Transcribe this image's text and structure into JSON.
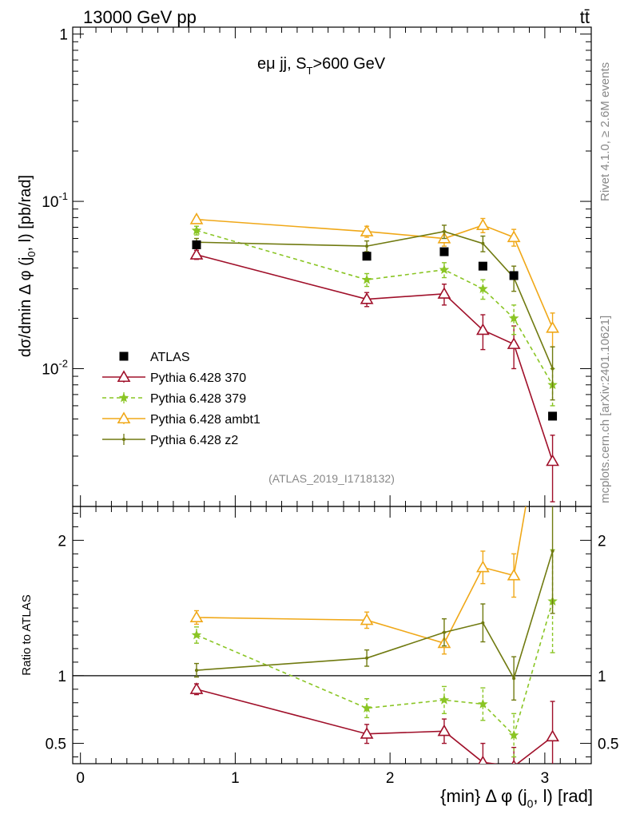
{
  "header": {
    "energy_label": "13000 GeV pp",
    "process_label": "tt̄"
  },
  "side_text": {
    "rivet": "Rivet 4.1.0, ≥ 2.6M events",
    "source": "mcplots.cern.ch [arXiv:2401.10621]"
  },
  "analysis_id": "(ATLAS_2019_I1718132)",
  "colors": {
    "ATLAS": "#000000",
    "p370": "#a0102a",
    "p379": "#8ac524",
    "ambt1": "#f0a818",
    "z2": "#707a10"
  },
  "chart_data": [
    {
      "type": "line",
      "title": "eμ jj, S_T>600 GeV",
      "xlabel": "{min} Δ φ (j_0, l) [rad]",
      "ylabel": "dσ/dmin Δ φ (j_0, l) [pb/rad]",
      "yscale": "log",
      "xlim": [
        -0.05,
        3.3
      ],
      "ylim": [
        0.0015,
        1.1
      ],
      "y_ticks": [
        "10^-2",
        "10^-1",
        "1"
      ],
      "x": [
        0.75,
        1.85,
        2.35,
        2.6,
        2.8,
        3.05
      ],
      "series": [
        {
          "key": "ATLAS",
          "name": "ATLAS",
          "marker": "square",
          "values": [
            0.055,
            0.047,
            0.05,
            0.041,
            0.036,
            0.0052
          ]
        },
        {
          "key": "p370",
          "name": "Pythia 6.428 370",
          "marker": "triangle-open",
          "dash": false,
          "values": [
            0.048,
            0.026,
            0.028,
            0.017,
            0.014,
            0.0028
          ],
          "errors": [
            0.003,
            0.0025,
            0.004,
            0.004,
            0.004,
            0.0012
          ]
        },
        {
          "key": "p379",
          "name": "Pythia 6.428 379",
          "marker": "star",
          "dash": true,
          "values": [
            0.067,
            0.034,
            0.039,
            0.03,
            0.02,
            0.008
          ],
          "errors": [
            0.004,
            0.003,
            0.004,
            0.004,
            0.004,
            0.002
          ]
        },
        {
          "key": "ambt1",
          "name": "Pythia 6.428 ambt1",
          "marker": "triangle-open",
          "dash": false,
          "values": [
            0.078,
            0.066,
            0.06,
            0.072,
            0.061,
            0.0175
          ],
          "errors": [
            0.003,
            0.005,
            0.006,
            0.007,
            0.007,
            0.004
          ]
        },
        {
          "key": "z2",
          "name": "Pythia 6.428 z2",
          "marker": "dot",
          "dash": false,
          "values": [
            0.057,
            0.054,
            0.066,
            0.056,
            0.035,
            0.01
          ],
          "errors": [
            0.003,
            0.004,
            0.006,
            0.006,
            0.006,
            0.0035
          ]
        }
      ]
    },
    {
      "type": "line",
      "title": "",
      "xlabel": "{min} Δ φ (j_0, l) [rad]",
      "ylabel": "Ratio to ATLAS",
      "xlim": [
        -0.05,
        3.3
      ],
      "ylim": [
        0.35,
        2.25
      ],
      "x_ticks": [
        "0",
        "1",
        "2",
        "3"
      ],
      "y_ticks": [
        "0.5",
        "1",
        "2"
      ],
      "reference_line": 1,
      "x": [
        0.75,
        1.85,
        2.35,
        2.6,
        2.8,
        3.05
      ],
      "series": [
        {
          "key": "p370",
          "name": "Pythia 6.428 370",
          "values": [
            0.9,
            0.57,
            0.59,
            0.36,
            0.33,
            0.55
          ],
          "errors": [
            0.04,
            0.07,
            0.09,
            0.14,
            0.14,
            0.26
          ]
        },
        {
          "key": "p379",
          "name": "Pythia 6.428 379",
          "values": [
            1.3,
            0.76,
            0.82,
            0.79,
            0.56,
            1.55
          ],
          "errors": [
            0.06,
            0.07,
            0.1,
            0.12,
            0.16,
            0.38
          ]
        },
        {
          "key": "ambt1",
          "name": "Pythia 6.428 ambt1",
          "values": [
            1.43,
            1.41,
            1.24,
            1.8,
            1.74,
            3.4
          ],
          "errors": [
            0.05,
            0.06,
            0.08,
            0.12,
            0.16,
            0.5
          ]
        },
        {
          "key": "z2",
          "name": "Pythia 6.428 z2",
          "values": [
            1.04,
            1.13,
            1.32,
            1.39,
            0.98,
            1.92
          ],
          "errors": [
            0.05,
            0.06,
            0.1,
            0.14,
            0.16,
            0.46
          ]
        }
      ]
    }
  ]
}
